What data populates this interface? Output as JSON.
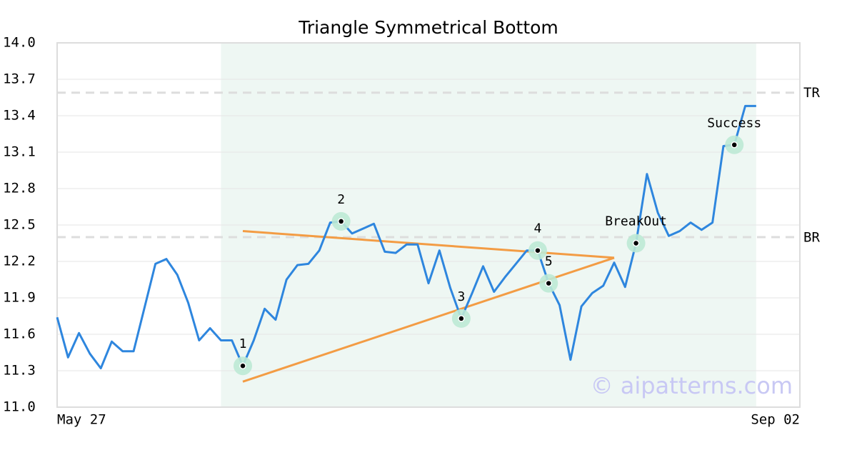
{
  "chart_data": {
    "type": "line",
    "title": "Triangle Symmetrical Bottom",
    "x": [
      0,
      1,
      2,
      3,
      4,
      5,
      6,
      7,
      8,
      9,
      10,
      11,
      12,
      13,
      14,
      15,
      16,
      17,
      18,
      19,
      20,
      21,
      22,
      23,
      24,
      25,
      26,
      27,
      28,
      29,
      30,
      31,
      32,
      33,
      34,
      35,
      36,
      37,
      38,
      39,
      40,
      41,
      42,
      43,
      44,
      45,
      46,
      47,
      48,
      49,
      50,
      51,
      52,
      53,
      54,
      55,
      56,
      57,
      58,
      59,
      60,
      61,
      62,
      63,
      64
    ],
    "series": [
      {
        "color": "#2e86de",
        "values": [
          11.74,
          11.41,
          11.61,
          11.44,
          11.32,
          11.54,
          11.46,
          11.46,
          11.82,
          12.18,
          12.22,
          12.09,
          11.86,
          11.55,
          11.65,
          11.55,
          11.55,
          11.34,
          11.55,
          11.81,
          11.72,
          12.05,
          12.17,
          12.18,
          12.29,
          12.52,
          12.53,
          12.43,
          12.47,
          12.51,
          12.28,
          12.27,
          12.34,
          12.34,
          12.02,
          12.29,
          11.98,
          11.73,
          11.94,
          12.16,
          11.95,
          12.07,
          12.18,
          12.29,
          12.29,
          12.02,
          11.84,
          11.39,
          11.83,
          11.94,
          12.0,
          12.19,
          11.99,
          12.35,
          12.92,
          12.6,
          12.41,
          12.45,
          12.52,
          12.46,
          12.52,
          13.15,
          13.16,
          13.48,
          13.48
        ]
      }
    ],
    "xlim": [
      0,
      68
    ],
    "xticks": [
      {
        "value": 0,
        "label": "May 27"
      },
      {
        "value": 68,
        "label": "Sep 02"
      }
    ],
    "ylim": [
      11.0,
      14.0
    ],
    "yticks": [
      {
        "value": 11,
        "label": "11.0"
      },
      11.3,
      11.6,
      11.9,
      12.2,
      12.5,
      12.8,
      13.1,
      13.4,
      13.7,
      {
        "value": 14,
        "label": "14.0"
      }
    ],
    "grid": true,
    "highlight_range": [
      15,
      64
    ],
    "trend_lines": [
      {
        "color": "#f39c44",
        "x": [
          17,
          51
        ],
        "y": [
          12.45,
          12.23
        ]
      },
      {
        "color": "#f39c44",
        "x": [
          17,
          51
        ],
        "y": [
          11.21,
          12.23
        ]
      }
    ],
    "levels": [
      {
        "label": "TR",
        "value": 13.59
      },
      {
        "label": "BR",
        "value": 12.4
      }
    ],
    "points": [
      {
        "index": 17,
        "label": "1"
      },
      {
        "index": 26,
        "label": "2"
      },
      {
        "index": 37,
        "label": "3"
      },
      {
        "index": 44,
        "label": "4"
      },
      {
        "index": 45,
        "label": "5"
      },
      {
        "index": 53,
        "label": "BreakOut"
      },
      {
        "index": 62,
        "label": "Success"
      }
    ],
    "watermark": "© aipatterns.com"
  }
}
